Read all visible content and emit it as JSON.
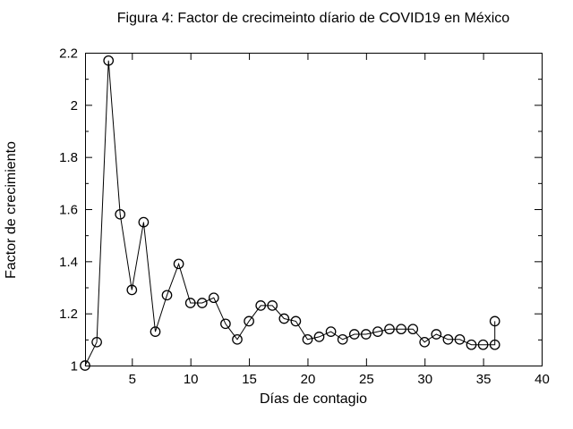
{
  "figure": {
    "title": "Figura 4: Factor de crecimeinto díario de COVID19 en México",
    "xlabel": "Días de contagio",
    "ylabel": "Factor de crecimiento"
  },
  "chart_data": {
    "type": "line",
    "title": "Figura 4: Factor de crecimeinto díario de COVID19 en México",
    "xlabel": "Días de contagio",
    "ylabel": "Factor de crecimiento",
    "xlim": [
      1,
      40
    ],
    "ylim": [
      1.0,
      2.2
    ],
    "x_ticks": [
      5,
      10,
      15,
      20,
      25,
      30,
      35,
      40
    ],
    "x_tick_labels": [
      "5",
      "10",
      "15",
      "20",
      "25",
      "30",
      "35",
      "40"
    ],
    "y_ticks": [
      1,
      1.2,
      1.4,
      1.6,
      1.8,
      2,
      2.2
    ],
    "y_tick_labels": [
      "1",
      "1.2",
      "1.4",
      "1.6",
      "1.8",
      "2",
      "2.2"
    ],
    "y_minor_ticks": [
      1.1,
      1.3,
      1.5,
      1.7,
      1.9,
      2.1
    ],
    "grid": false,
    "legend": "none",
    "marker": "open-circle",
    "line_color": "#000000",
    "marker_color": "#000000",
    "background_color": "#ffffff",
    "points": [
      [
        1,
        1.0
      ],
      [
        2,
        1.09
      ],
      [
        3,
        2.17
      ],
      [
        4,
        1.58
      ],
      [
        5,
        1.29
      ],
      [
        6,
        1.55
      ],
      [
        7,
        1.13
      ],
      [
        8,
        1.27
      ],
      [
        9,
        1.39
      ],
      [
        10,
        1.24
      ],
      [
        11,
        1.24
      ],
      [
        12,
        1.26
      ],
      [
        13,
        1.16
      ],
      [
        14,
        1.1
      ],
      [
        15,
        1.17
      ],
      [
        16,
        1.23
      ],
      [
        17,
        1.23
      ],
      [
        18,
        1.18
      ],
      [
        19,
        1.17
      ],
      [
        20,
        1.1
      ],
      [
        21,
        1.11
      ],
      [
        22,
        1.13
      ],
      [
        23,
        1.1
      ],
      [
        24,
        1.12
      ],
      [
        25,
        1.12
      ],
      [
        26,
        1.13
      ],
      [
        27,
        1.14
      ],
      [
        28,
        1.14
      ],
      [
        29,
        1.14
      ],
      [
        30,
        1.09
      ],
      [
        31,
        1.12
      ],
      [
        32,
        1.1
      ],
      [
        33,
        1.1
      ],
      [
        34,
        1.08
      ],
      [
        35,
        1.08
      ],
      [
        36,
        1.08
      ],
      [
        36,
        1.17
      ]
    ]
  }
}
